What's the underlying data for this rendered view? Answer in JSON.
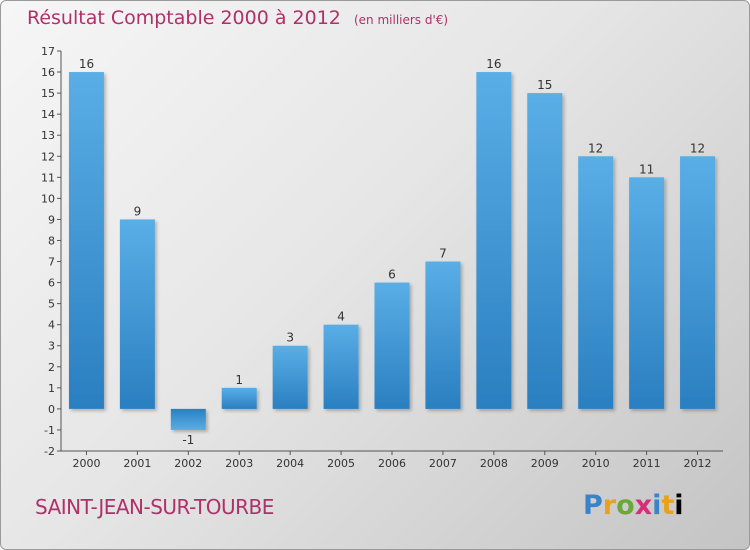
{
  "title": "Résultat Comptable 2000 à 2012",
  "subtitle": "(en milliers d'€)",
  "commune": "SAINT-JEAN-SUR-TOURBE",
  "logo": "Proxiti",
  "colors": {
    "title": "#b0306a",
    "bar_light": "#5aaee6",
    "bar_dark": "#2a7fc0"
  },
  "chart_data": {
    "type": "bar",
    "title": "Résultat Comptable 2000 à 2012",
    "subtitle": "(en milliers d'€)",
    "categories": [
      "2000",
      "2001",
      "2002",
      "2003",
      "2004",
      "2005",
      "2006",
      "2007",
      "2008",
      "2009",
      "2010",
      "2011",
      "2012"
    ],
    "values": [
      16,
      9,
      -1,
      1,
      3,
      4,
      6,
      7,
      16,
      15,
      12,
      11,
      12
    ],
    "value_labels": [
      "16",
      "9",
      "-1",
      "1",
      "3",
      "4",
      "6",
      "7",
      "16",
      "15",
      "12",
      "11",
      "12"
    ],
    "yticks": [
      "-2",
      "-1",
      "0",
      "1",
      "2",
      "3",
      "4",
      "5",
      "6",
      "7",
      "8",
      "9",
      "10",
      "11",
      "12",
      "13",
      "14",
      "15",
      "16",
      "17"
    ],
    "ylim": [
      -2,
      17
    ],
    "grid": false
  }
}
